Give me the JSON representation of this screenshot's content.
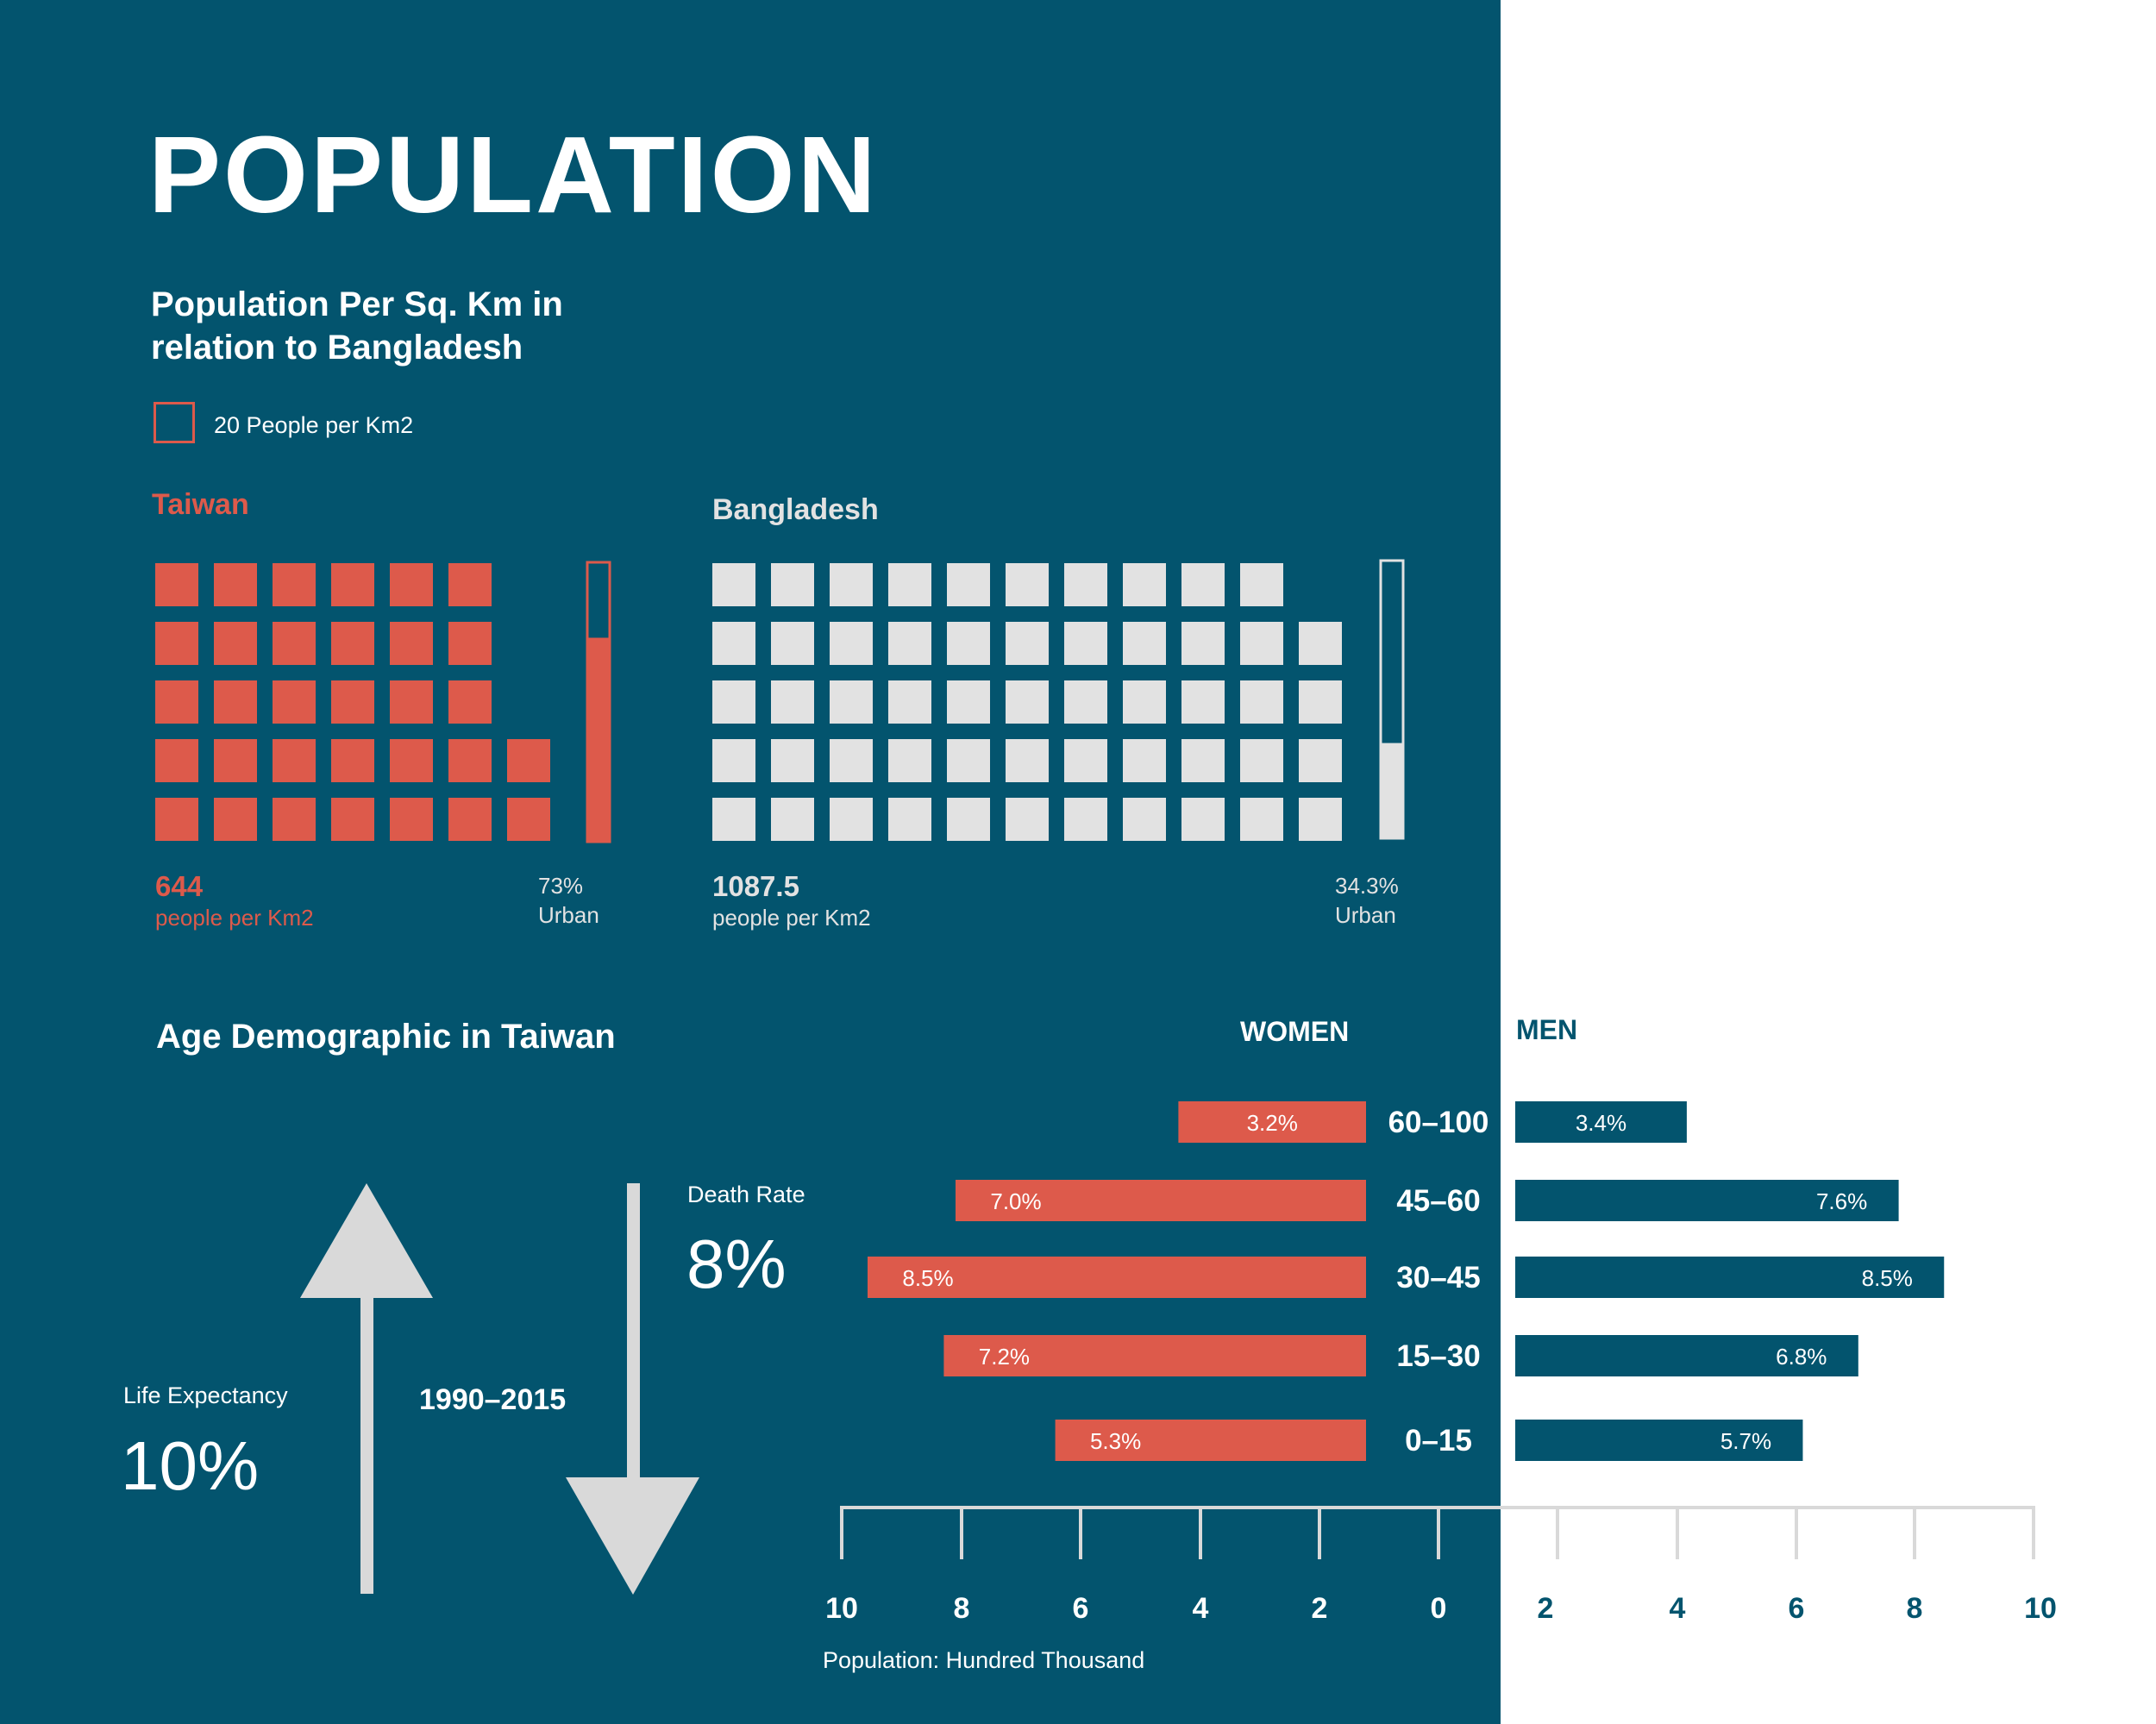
{
  "title": "POPULATION",
  "subtitle": "Population Per Sq. Km in relation to Bangladesh",
  "legend": {
    "label": "20 People per Km2",
    "color": "#dd5a4b"
  },
  "colors": {
    "background": "#03546e",
    "women": "#dd5a4b",
    "men": "#03546e",
    "bangladesh": "#e2e2e2",
    "white": "#ffffff"
  },
  "density": {
    "taiwan": {
      "name": "Taiwan",
      "value": "644",
      "unit": "people per Km2",
      "icon_count": 32,
      "urban_percent_label": "73%",
      "urban_label": "Urban",
      "urban_fraction": 0.73
    },
    "bangladesh": {
      "name": "Bangladesh",
      "value": "1087.5",
      "unit": "people per Km2",
      "icon_count": 54,
      "urban_percent_label": "34.3%",
      "urban_label": "Urban",
      "urban_fraction": 0.343
    }
  },
  "age_section": {
    "title": "Age Demographic in Taiwan",
    "women_label": "WOMEN",
    "men_label": "MEN",
    "life_expectancy_label": "Life Expectancy",
    "life_expectancy_value": "10%",
    "period_label": "1990–2015",
    "death_rate_label": "Death Rate",
    "death_rate_value": "8%",
    "axis_note": "Population: Hundred Thousand"
  },
  "chart_data": {
    "type": "bar",
    "orientation": "horizontal",
    "categories": [
      "60–100",
      "45–60",
      "30–45",
      "15–30",
      "0–15"
    ],
    "series": [
      {
        "name": "WOMEN",
        "values": [
          3.2,
          7.0,
          8.5,
          7.2,
          5.3
        ],
        "labels": [
          "3.2%",
          "7.0%",
          "8.5%",
          "7.2%",
          "5.3%"
        ],
        "color": "#dd5a4b"
      },
      {
        "name": "MEN",
        "values": [
          3.4,
          7.6,
          8.5,
          6.8,
          5.7
        ],
        "labels": [
          "3.4%",
          "7.6%",
          "8.5%",
          "6.8%",
          "5.7%"
        ],
        "color": "#03546e"
      }
    ],
    "women_ticks": [
      "10",
      "8",
      "6",
      "4",
      "2",
      "0"
    ],
    "men_ticks": [
      "2",
      "4",
      "6",
      "8",
      "10"
    ],
    "xlim": [
      0,
      10
    ],
    "xlabel": "Population: Hundred Thousand"
  }
}
